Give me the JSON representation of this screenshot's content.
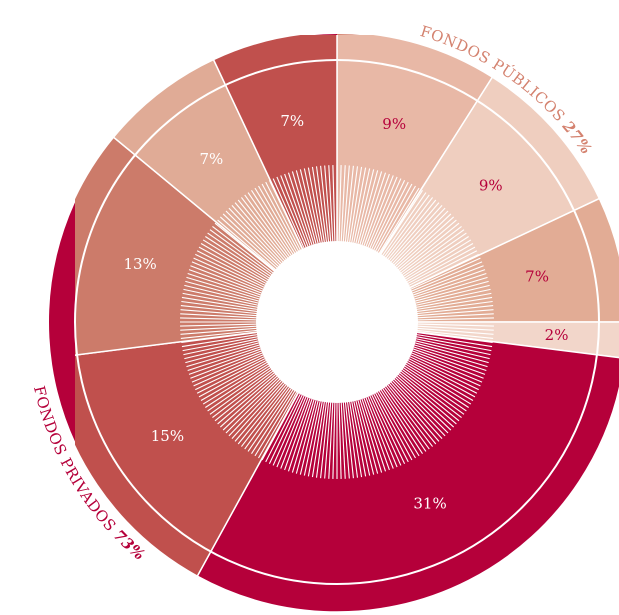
{
  "chart_data": {
    "type": "sunburst",
    "outer": {
      "categories": [
        "FONDOS PÚBLICOS",
        "FONDOS PRIVADOS"
      ],
      "values": [
        27,
        73
      ],
      "value_labels": [
        "27%",
        "73%"
      ],
      "colors": [
        "#d4826f",
        "#b5003a"
      ],
      "label_colors": [
        "#d4826f",
        "#b5003a"
      ]
    },
    "inner": {
      "values": [
        9,
        9,
        7,
        2,
        31,
        15,
        13,
        7,
        7
      ],
      "value_labels": [
        "9%",
        "9%",
        "7%",
        "2%",
        "31%",
        "15%",
        "13%",
        "7%",
        "7%"
      ],
      "colors": [
        "#e8b8a6",
        "#efcebf",
        "#e2ac95",
        "#f2d6ca",
        "#b5003a",
        "#c0504d",
        "#cc7b6a",
        "#e0ab96",
        "#c0504d"
      ],
      "label_colors": [
        "#b5003a",
        "#b5003a",
        "#b5003a",
        "#b5003a",
        "#ffffff",
        "#ffffff",
        "#ffffff",
        "#ffffff",
        "#ffffff"
      ]
    }
  }
}
